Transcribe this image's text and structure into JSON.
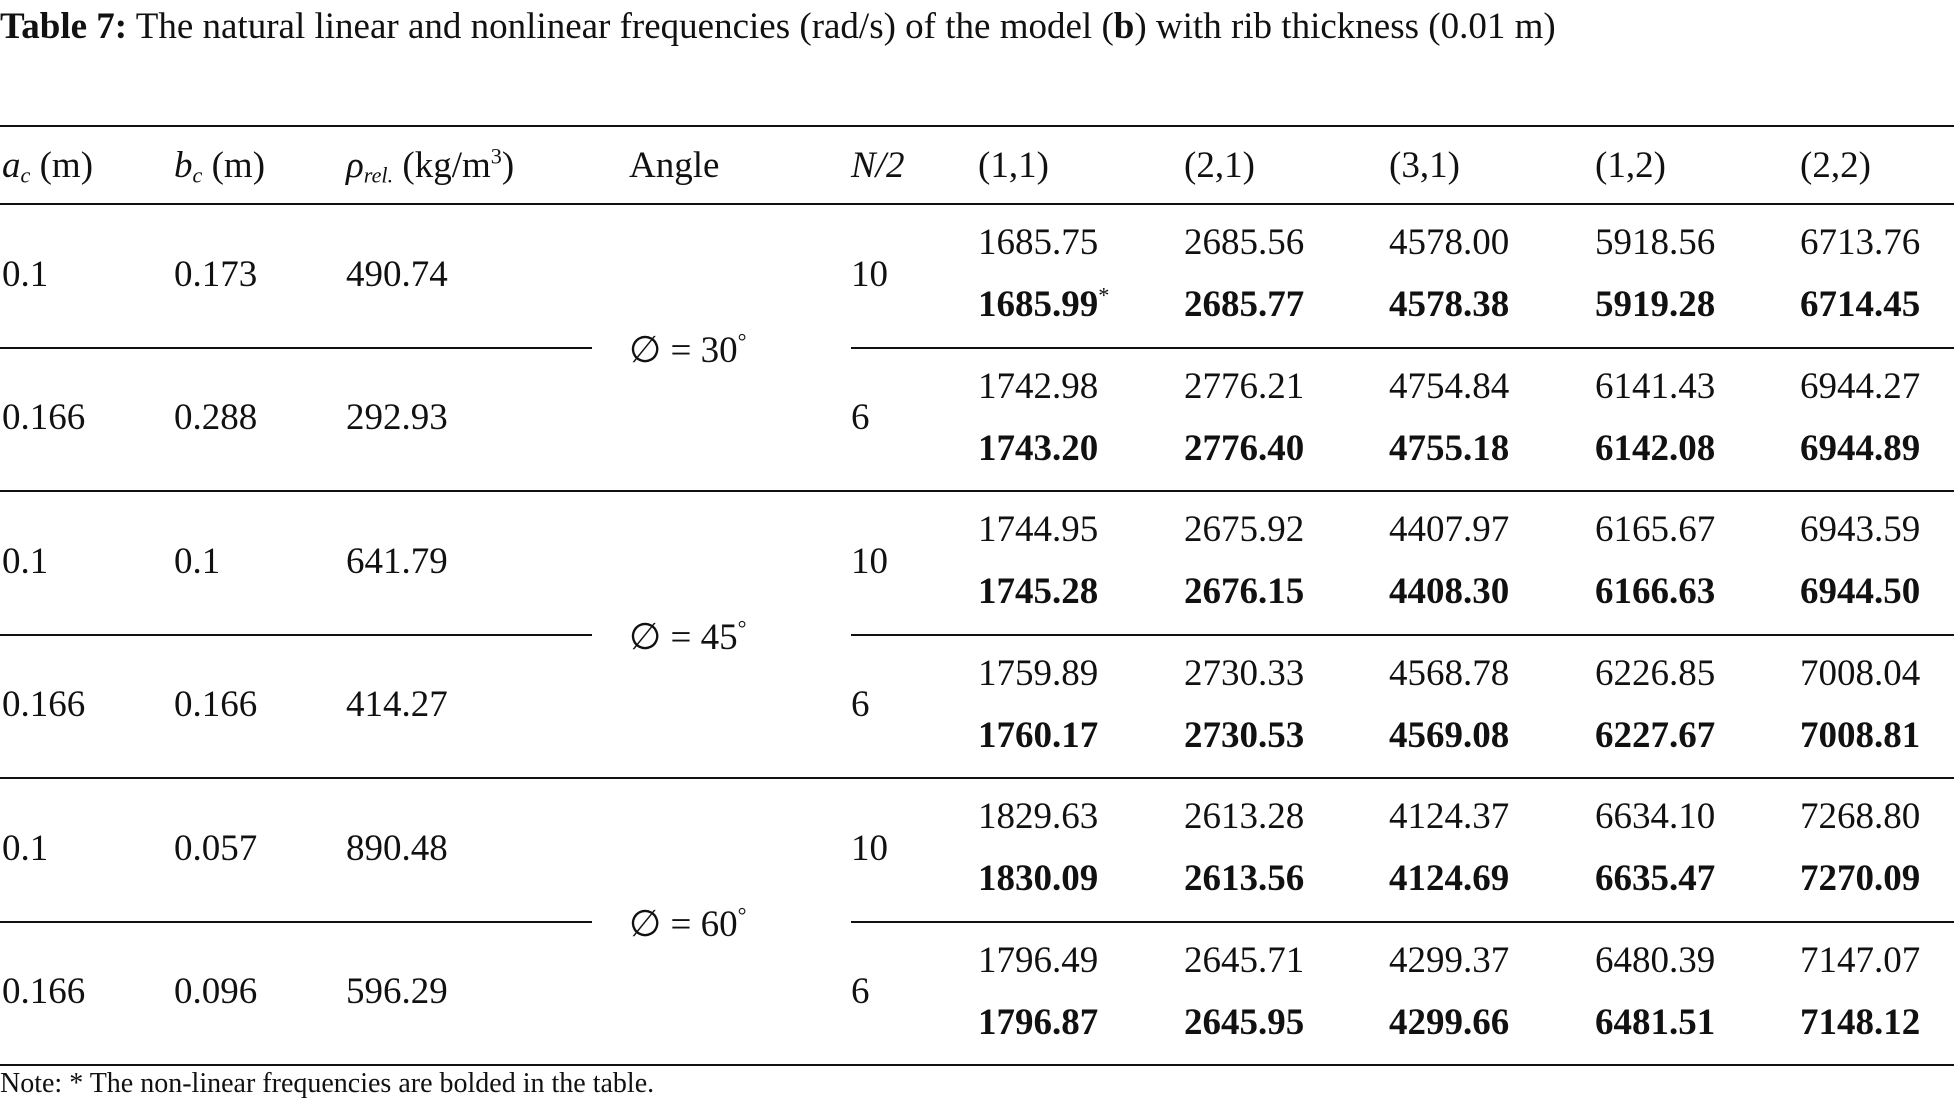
{
  "caption": {
    "label": "Table 7:",
    "text": "The natural linear and nonlinear frequencies (rad/s) of the model (",
    "bold": "b",
    "tail": ") with rib thickness (0.01 m)"
  },
  "table": {
    "headers": [
      {
        "main": "a",
        "sub": "c",
        "unit": " (m)"
      },
      {
        "main": "b",
        "sub": "c",
        "unit": " (m)"
      },
      {
        "main": "ρ",
        "sub": "rel.",
        "unit": " (kg/m",
        "sup": "3",
        "close": ")"
      },
      {
        "text": "Angle"
      },
      {
        "italic": "N/2"
      },
      {
        "text": "(1,1)"
      },
      {
        "text": "(2,1)"
      },
      {
        "text": "(3,1)"
      },
      {
        "text": "(1,2)"
      },
      {
        "text": "(2,2)"
      }
    ],
    "angles": [
      {
        "text": "∅ = 30",
        "sup": "°"
      },
      {
        "text": "∅ = 45",
        "sup": "°"
      },
      {
        "text": "∅ = 60",
        "sup": "°"
      }
    ],
    "rows": [
      {
        "ac": "0.1",
        "bc": "0.173",
        "rho": "490.74",
        "n": "10",
        "linear": [
          "1685.75",
          "2685.56",
          "4578.00",
          "5918.56",
          "6713.76"
        ],
        "nonlinear": [
          "1685.99",
          "2685.77",
          "4578.38",
          "5919.28",
          "6714.45"
        ],
        "marker": "*"
      },
      {
        "ac": "0.166",
        "bc": "0.288",
        "rho": "292.93",
        "n": "6",
        "linear": [
          "1742.98",
          "2776.21",
          "4754.84",
          "6141.43",
          "6944.27"
        ],
        "nonlinear": [
          "1743.20",
          "2776.40",
          "4755.18",
          "6142.08",
          "6944.89"
        ]
      },
      {
        "ac": "0.1",
        "bc": "0.1",
        "rho": "641.79",
        "n": "10",
        "linear": [
          "1744.95",
          "2675.92",
          "4407.97",
          "6165.67",
          "6943.59"
        ],
        "nonlinear": [
          "1745.28",
          "2676.15",
          "4408.30",
          "6166.63",
          "6944.50"
        ]
      },
      {
        "ac": "0.166",
        "bc": "0.166",
        "rho": "414.27",
        "n": "6",
        "linear": [
          "1759.89",
          "2730.33",
          "4568.78",
          "6226.85",
          "7008.04"
        ],
        "nonlinear": [
          "1760.17",
          "2730.53",
          "4569.08",
          "6227.67",
          "7008.81"
        ]
      },
      {
        "ac": "0.1",
        "bc": "0.057",
        "rho": "890.48",
        "n": "10",
        "linear": [
          "1829.63",
          "2613.28",
          "4124.37",
          "6634.10",
          "7268.80"
        ],
        "nonlinear": [
          "1830.09",
          "2613.56",
          "4124.69",
          "6635.47",
          "7270.09"
        ]
      },
      {
        "ac": "0.166",
        "bc": "0.096",
        "rho": "596.29",
        "n": "6",
        "linear": [
          "1796.49",
          "2645.71",
          "4299.37",
          "6480.39",
          "7147.07"
        ],
        "nonlinear": [
          "1796.87",
          "2645.95",
          "4299.66",
          "6481.51",
          "7148.12"
        ]
      }
    ],
    "note": "Note: * The non-linear frequencies are bolded in the table."
  }
}
